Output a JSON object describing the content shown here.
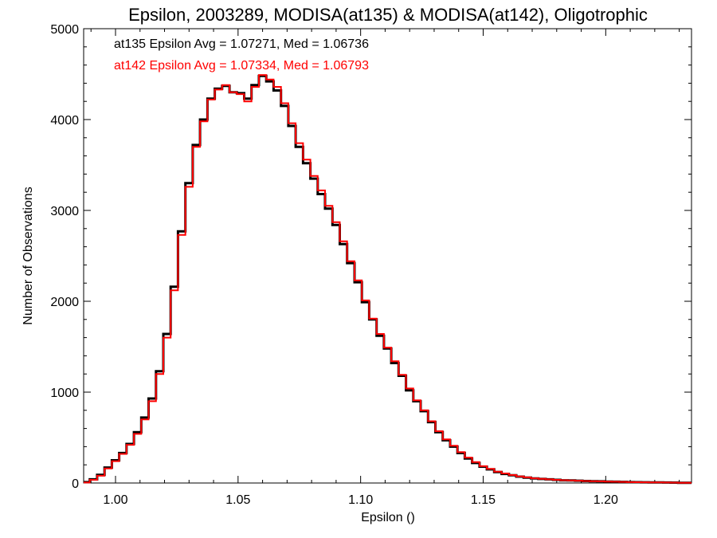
{
  "chart_data": {
    "type": "line",
    "title": "Epsilon, 2003289, MODISA(at135) & MODISA(at142), Oligotrophic",
    "xlabel": "Epsilon ()",
    "ylabel": "Number of Observations",
    "xlim": [
      0.987,
      1.235
    ],
    "ylim": [
      0,
      5000
    ],
    "xticks": [
      1.0,
      1.05,
      1.1,
      1.15,
      1.2
    ],
    "xtick_labels": [
      "1.00",
      "1.05",
      "1.10",
      "1.15",
      "1.20"
    ],
    "yticks": [
      0,
      1000,
      2000,
      3000,
      4000,
      5000
    ],
    "ytick_labels": [
      "0",
      "1000",
      "2000",
      "3000",
      "4000",
      "5000"
    ],
    "grid": false,
    "step": true,
    "annotations": [
      {
        "text": "at135 Epsilon Avg = 1.07271, Med = 1.06736",
        "color": "#000000"
      },
      {
        "text": "at142 Epsilon Avg = 1.07334, Med = 1.06793",
        "color": "#ff0000"
      }
    ],
    "series": [
      {
        "color": "#000000",
        "x": [
          0.988,
          0.991,
          0.994,
          0.997,
          1.0,
          1.003,
          1.006,
          1.009,
          1.012,
          1.015,
          1.018,
          1.021,
          1.024,
          1.027,
          1.03,
          1.033,
          1.036,
          1.039,
          1.042,
          1.045,
          1.048,
          1.051,
          1.054,
          1.057,
          1.06,
          1.063,
          1.066,
          1.069,
          1.072,
          1.075,
          1.078,
          1.081,
          1.084,
          1.087,
          1.09,
          1.093,
          1.096,
          1.099,
          1.102,
          1.105,
          1.108,
          1.111,
          1.114,
          1.117,
          1.12,
          1.123,
          1.126,
          1.129,
          1.132,
          1.135,
          1.138,
          1.141,
          1.144,
          1.147,
          1.15,
          1.153,
          1.156,
          1.159,
          1.162,
          1.165,
          1.168,
          1.171,
          1.174,
          1.177,
          1.18,
          1.183,
          1.186,
          1.189,
          1.192,
          1.195,
          1.198,
          1.201,
          1.204,
          1.207,
          1.21,
          1.213,
          1.216,
          1.219,
          1.222,
          1.225,
          1.228,
          1.231,
          1.234
        ],
        "values": [
          10,
          40,
          90,
          170,
          250,
          330,
          430,
          560,
          720,
          930,
          1230,
          1640,
          2160,
          2770,
          3300,
          3720,
          4000,
          4230,
          4340,
          4370,
          4300,
          4290,
          4230,
          4380,
          4480,
          4420,
          4320,
          4150,
          3930,
          3700,
          3520,
          3350,
          3180,
          3020,
          2840,
          2630,
          2420,
          2210,
          1990,
          1800,
          1620,
          1480,
          1320,
          1180,
          1020,
          900,
          790,
          670,
          560,
          470,
          400,
          330,
          270,
          220,
          180,
          150,
          120,
          100,
          85,
          70,
          60,
          50,
          45,
          40,
          35,
          30,
          28,
          25,
          22,
          20,
          18,
          16,
          14,
          12,
          10,
          9,
          8,
          7,
          6,
          5,
          4,
          3,
          2
        ]
      },
      {
        "color": "#ff0000",
        "x": [
          0.988,
          0.991,
          0.994,
          0.997,
          1.0,
          1.003,
          1.006,
          1.009,
          1.012,
          1.015,
          1.018,
          1.021,
          1.024,
          1.027,
          1.03,
          1.033,
          1.036,
          1.039,
          1.042,
          1.045,
          1.048,
          1.051,
          1.054,
          1.057,
          1.06,
          1.063,
          1.066,
          1.069,
          1.072,
          1.075,
          1.078,
          1.081,
          1.084,
          1.087,
          1.09,
          1.093,
          1.096,
          1.099,
          1.102,
          1.105,
          1.108,
          1.111,
          1.114,
          1.117,
          1.12,
          1.123,
          1.126,
          1.129,
          1.132,
          1.135,
          1.138,
          1.141,
          1.144,
          1.147,
          1.15,
          1.153,
          1.156,
          1.159,
          1.162,
          1.165,
          1.168,
          1.171,
          1.174,
          1.177,
          1.18,
          1.183,
          1.186,
          1.189,
          1.192,
          1.195,
          1.198,
          1.201,
          1.204,
          1.207,
          1.21,
          1.213,
          1.216,
          1.219,
          1.222,
          1.225,
          1.228,
          1.231,
          1.234
        ],
        "values": [
          5,
          35,
          80,
          160,
          240,
          320,
          420,
          540,
          700,
          900,
          1200,
          1600,
          2120,
          2730,
          3260,
          3700,
          3980,
          4220,
          4330,
          4380,
          4300,
          4280,
          4200,
          4360,
          4490,
          4440,
          4360,
          4180,
          3960,
          3740,
          3560,
          3380,
          3220,
          3050,
          2870,
          2660,
          2440,
          2230,
          2010,
          1810,
          1640,
          1490,
          1340,
          1190,
          1040,
          910,
          800,
          680,
          570,
          480,
          410,
          340,
          280,
          230,
          185,
          155,
          125,
          105,
          88,
          72,
          62,
          52,
          46,
          40,
          35,
          31,
          28,
          25,
          22,
          20,
          18,
          16,
          14,
          12,
          10,
          9,
          8,
          7,
          6,
          5,
          4,
          3,
          2
        ]
      }
    ]
  }
}
